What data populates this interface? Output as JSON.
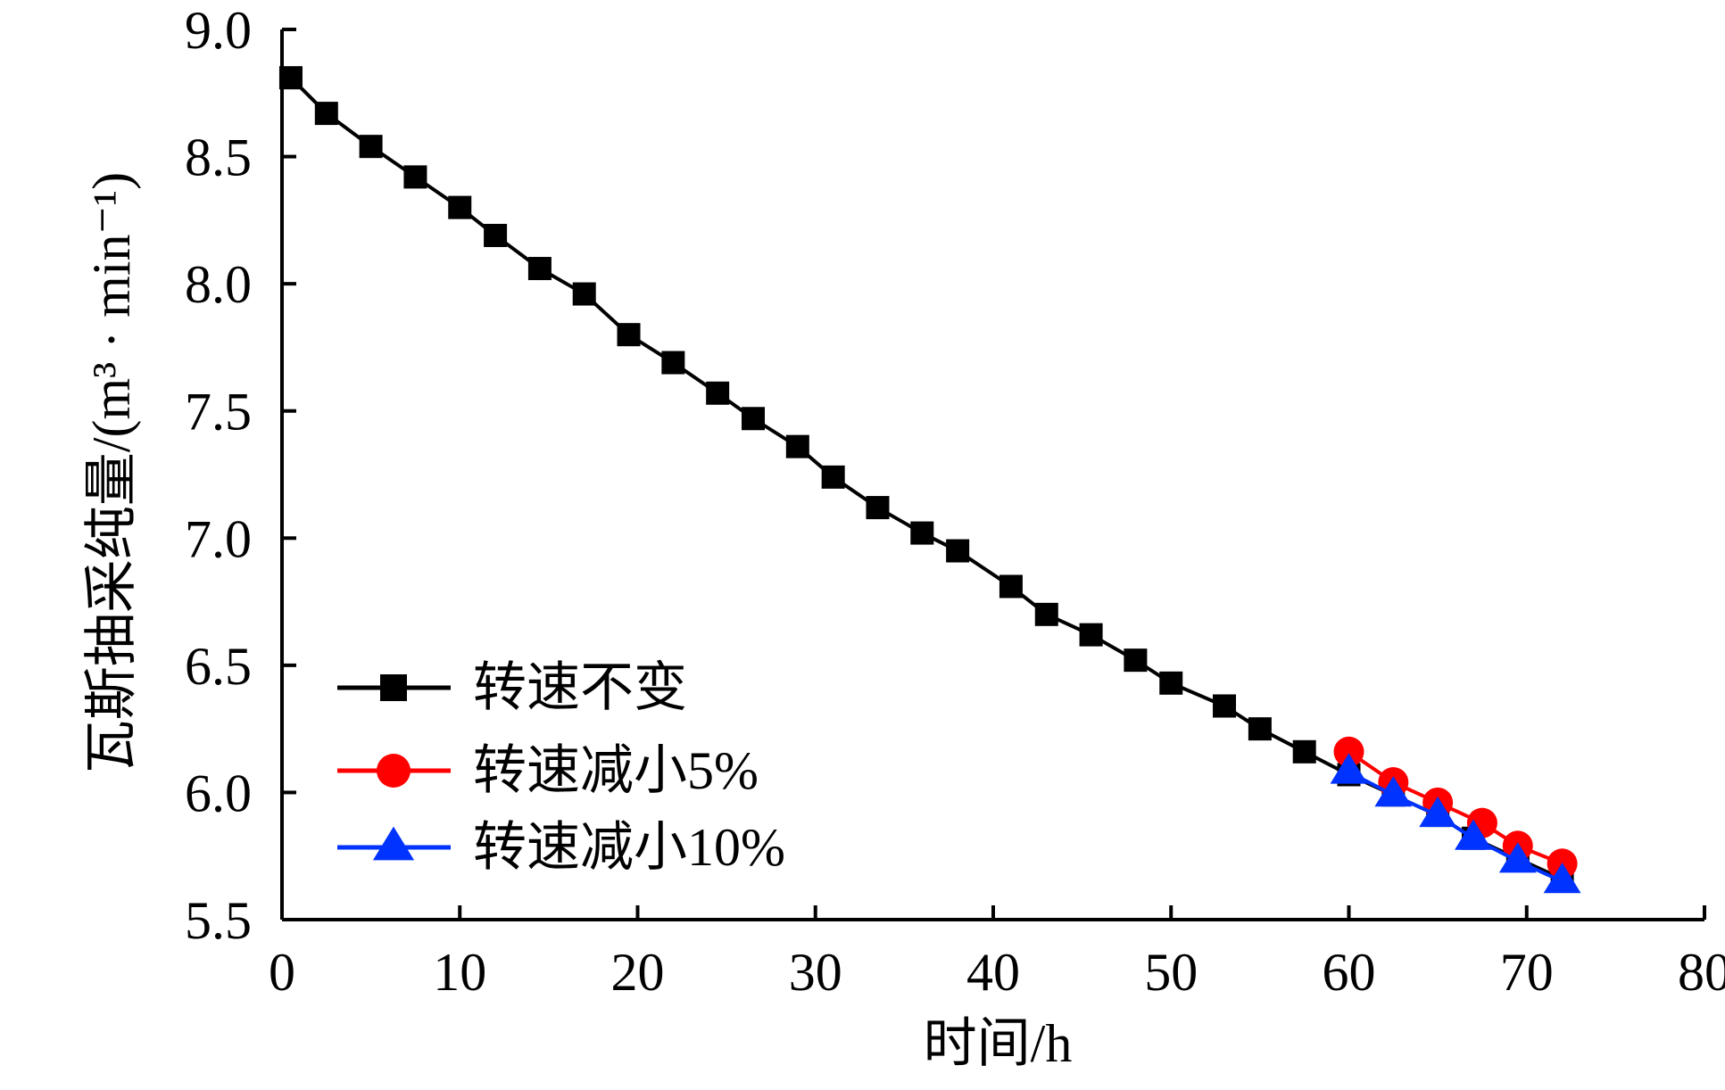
{
  "chart_data": {
    "type": "line",
    "title": "",
    "xlabel": "时间/h",
    "ylabel": "瓦斯抽采纯量/(m³ · min⁻¹)",
    "xlim": [
      0,
      80
    ],
    "ylim": [
      5.5,
      9.0
    ],
    "xticks": [
      "0",
      "10",
      "20",
      "30",
      "40",
      "50",
      "60",
      "70",
      "80"
    ],
    "yticks": [
      "5.5",
      "6.0",
      "6.5",
      "7.0",
      "7.5",
      "8.0",
      "8.5",
      "9.0"
    ],
    "grid": false,
    "legend_position": "lower-left",
    "series": [
      {
        "name": "转速不变",
        "color": "#000000",
        "marker": "square",
        "x": [
          0.5,
          2.5,
          5,
          7.5,
          10,
          12,
          14.5,
          17,
          19.5,
          22,
          24.5,
          26.5,
          29,
          31,
          33.5,
          36,
          38,
          41,
          43,
          45.5,
          48,
          50,
          53,
          55,
          57.5,
          60,
          62.5,
          65,
          67,
          69.5,
          72
        ],
        "y": [
          8.81,
          8.67,
          8.54,
          8.42,
          8.3,
          8.19,
          8.06,
          7.96,
          7.8,
          7.69,
          7.57,
          7.47,
          7.36,
          7.24,
          7.12,
          7.02,
          6.95,
          6.81,
          6.7,
          6.62,
          6.52,
          6.43,
          6.34,
          6.25,
          6.16,
          6.07,
          5.99,
          5.91,
          5.82,
          5.74,
          5.66
        ]
      },
      {
        "name": "转速减小5%",
        "color": "#ff0000",
        "marker": "circle",
        "x": [
          60,
          62.5,
          65,
          67.5,
          69.5,
          72
        ],
        "y": [
          6.16,
          6.04,
          5.96,
          5.88,
          5.79,
          5.72
        ]
      },
      {
        "name": "转速减小10%",
        "color": "#0033ff",
        "marker": "triangle",
        "x": [
          60,
          62.5,
          65,
          67,
          69.5,
          72
        ],
        "y": [
          6.08,
          5.99,
          5.91,
          5.82,
          5.73,
          5.65
        ]
      }
    ]
  }
}
